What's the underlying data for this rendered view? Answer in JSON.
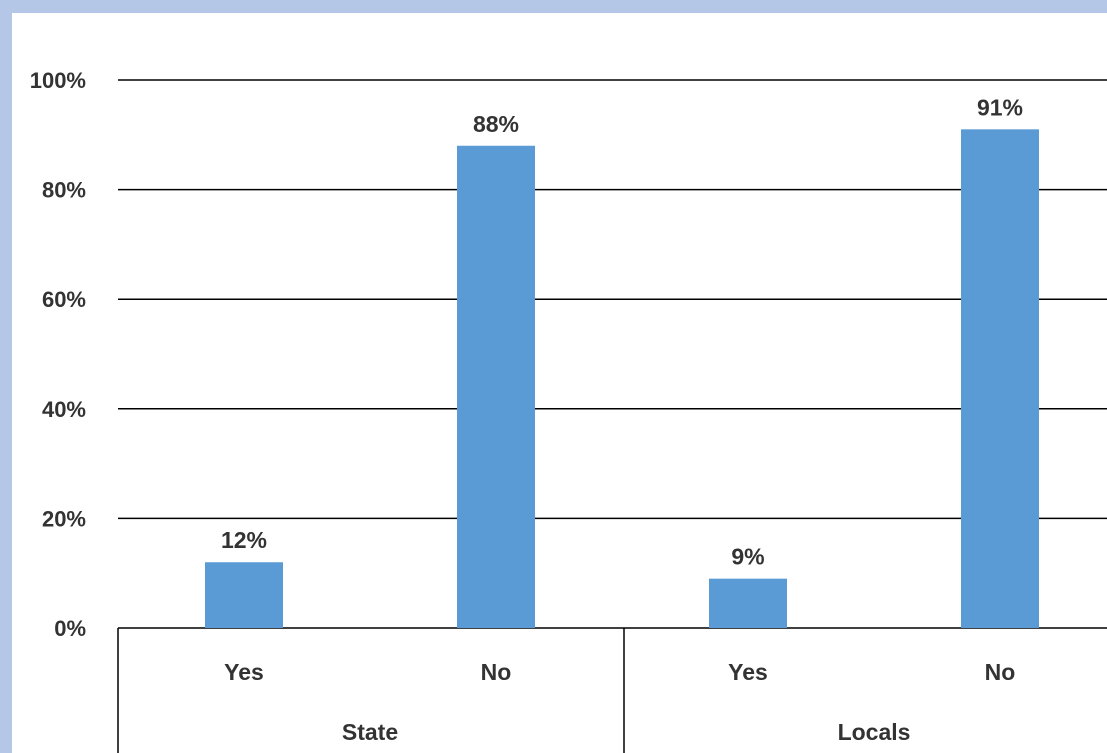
{
  "chart_data": {
    "type": "bar",
    "groups": [
      {
        "label": "State",
        "categories": [
          "Yes",
          "No"
        ],
        "values": [
          12,
          88
        ]
      },
      {
        "label": "Locals",
        "categories": [
          "Yes",
          "No"
        ],
        "values": [
          9,
          91
        ]
      }
    ],
    "values": [
      12,
      88,
      9,
      91
    ],
    "data_labels": [
      "12%",
      "88%",
      "9%",
      "91%"
    ],
    "y_ticks": [
      "0%",
      "20%",
      "40%",
      "60%",
      "80%",
      "100%"
    ],
    "ylim": [
      0,
      100
    ],
    "grid": true,
    "bar_color": "#5b9bd5",
    "title": "",
    "xlabel": "",
    "ylabel": ""
  }
}
